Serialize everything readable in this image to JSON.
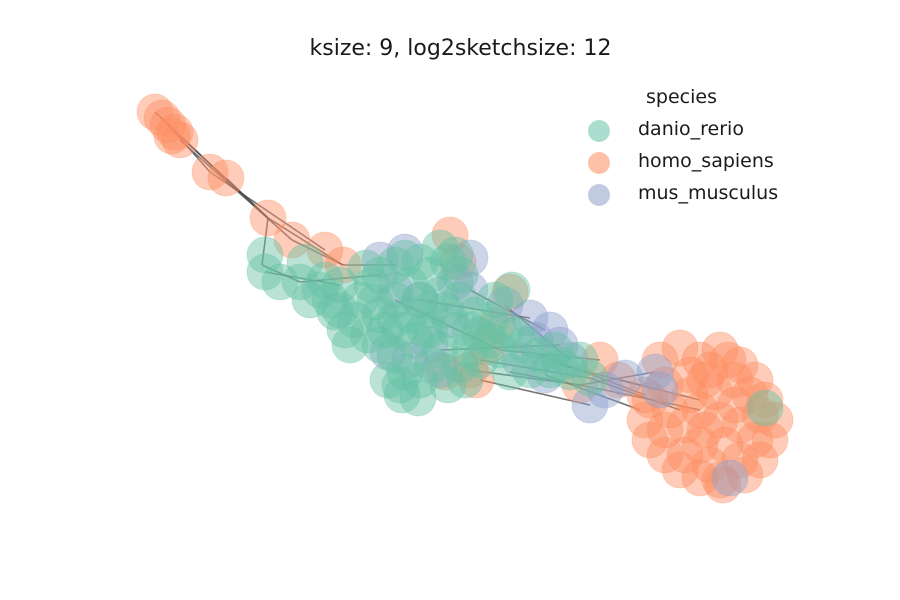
{
  "chart_data": {
    "type": "scatter",
    "subtype": "network-graph",
    "title": "ksize: 9, log2sketchsize: 12",
    "xlabel": "",
    "ylabel": "",
    "axes_visible": false,
    "grid": false,
    "legend": {
      "title": "species",
      "placement": "top-right",
      "entries": [
        {
          "name": "danio_rerio",
          "color": "#66c2a5"
        },
        {
          "name": "homo_sapiens",
          "color": "#fc8d62"
        },
        {
          "name": "mus_musculus",
          "color": "#8da0cb"
        }
      ]
    },
    "edge_color": "#444444",
    "node_opacity": 0.45,
    "series": [
      {
        "name": "homo_sapiens",
        "color": "#fc8d62",
        "points": [
          [
            155,
            112
          ],
          [
            162,
            118
          ],
          [
            168,
            125
          ],
          [
            175,
            132
          ],
          [
            180,
            140
          ],
          [
            172,
            136
          ],
          [
            210,
            172
          ],
          [
            226,
            178
          ],
          [
            268,
            218
          ],
          [
            292,
            240
          ],
          [
            325,
            250
          ],
          [
            343,
            265
          ],
          [
            450,
            235
          ],
          [
            458,
            262
          ],
          [
            510,
            292
          ],
          [
            497,
            325
          ],
          [
            487,
            347
          ],
          [
            470,
            370
          ],
          [
            476,
            380
          ],
          [
            445,
            372
          ],
          [
            580,
            385
          ],
          [
            600,
            360
          ],
          [
            618,
            380
          ],
          [
            645,
            395
          ],
          [
            660,
            360
          ],
          [
            680,
            348
          ],
          [
            700,
            360
          ],
          [
            720,
            350
          ],
          [
            740,
            365
          ],
          [
            755,
            380
          ],
          [
            765,
            400
          ],
          [
            775,
            420
          ],
          [
            770,
            440
          ],
          [
            760,
            460
          ],
          [
            745,
            475
          ],
          [
            720,
            480
          ],
          [
            700,
            478
          ],
          [
            680,
            470
          ],
          [
            665,
            455
          ],
          [
            650,
            440
          ],
          [
            645,
            420
          ],
          [
            650,
            400
          ],
          [
            665,
            385
          ],
          [
            690,
            375
          ],
          [
            710,
            370
          ],
          [
            735,
            380
          ],
          [
            750,
            395
          ],
          [
            760,
            415
          ],
          [
            755,
            440
          ],
          [
            740,
            460
          ],
          [
            710,
            465
          ],
          [
            685,
            455
          ],
          [
            665,
            430
          ],
          [
            670,
            410
          ],
          [
            690,
            395
          ],
          [
            715,
            392
          ],
          [
            735,
            405
          ],
          [
            740,
            425
          ],
          [
            725,
            445
          ],
          [
            700,
            445
          ],
          [
            685,
            425
          ],
          [
            700,
            410
          ],
          [
            720,
            420
          ],
          [
            705,
            430
          ],
          [
            723,
            485
          ],
          [
            705,
            380
          ],
          [
            728,
            360
          ]
        ]
      },
      {
        "name": "mus_musculus",
        "color": "#8da0cb",
        "points": [
          [
            380,
            260
          ],
          [
            405,
            252
          ],
          [
            470,
            258
          ],
          [
            395,
            290
          ],
          [
            420,
            300
          ],
          [
            470,
            290
          ],
          [
            505,
            305
          ],
          [
            530,
            318
          ],
          [
            550,
            330
          ],
          [
            560,
            345
          ],
          [
            570,
            360
          ],
          [
            590,
            405
          ],
          [
            605,
            390
          ],
          [
            625,
            378
          ],
          [
            655,
            372
          ],
          [
            660,
            390
          ],
          [
            440,
            370
          ],
          [
            410,
            360
          ],
          [
            388,
            352
          ],
          [
            520,
            360
          ],
          [
            545,
            375
          ],
          [
            535,
            340
          ],
          [
            450,
            320
          ],
          [
            430,
            345
          ],
          [
            730,
            478
          ],
          [
            455,
            282
          ]
        ]
      },
      {
        "name": "danio_rerio",
        "color": "#66c2a5",
        "points": [
          [
            265,
            255
          ],
          [
            265,
            272
          ],
          [
            280,
            282
          ],
          [
            300,
            282
          ],
          [
            305,
            262
          ],
          [
            320,
            290
          ],
          [
            330,
            300
          ],
          [
            340,
            310
          ],
          [
            345,
            330
          ],
          [
            355,
            320
          ],
          [
            360,
            300
          ],
          [
            372,
            285
          ],
          [
            380,
            275
          ],
          [
            395,
            265
          ],
          [
            405,
            258
          ],
          [
            420,
            262
          ],
          [
            440,
            248
          ],
          [
            455,
            255
          ],
          [
            430,
            275
          ],
          [
            410,
            285
          ],
          [
            395,
            300
          ],
          [
            380,
            315
          ],
          [
            368,
            335
          ],
          [
            380,
            345
          ],
          [
            395,
            355
          ],
          [
            405,
            372
          ],
          [
            400,
            385
          ],
          [
            420,
            380
          ],
          [
            432,
            365
          ],
          [
            440,
            350
          ],
          [
            425,
            330
          ],
          [
            410,
            315
          ],
          [
            420,
            300
          ],
          [
            440,
            295
          ],
          [
            460,
            300
          ],
          [
            475,
            315
          ],
          [
            480,
            335
          ],
          [
            470,
            350
          ],
          [
            460,
            365
          ],
          [
            480,
            360
          ],
          [
            500,
            350
          ],
          [
            515,
            335
          ],
          [
            512,
            290
          ],
          [
            495,
            300
          ],
          [
            490,
            320
          ],
          [
            525,
            345
          ],
          [
            540,
            355
          ],
          [
            555,
            350
          ],
          [
            560,
            365
          ],
          [
            570,
            372
          ],
          [
            580,
            360
          ],
          [
            590,
            378
          ],
          [
            550,
            370
          ],
          [
            530,
            370
          ],
          [
            510,
            372
          ],
          [
            465,
            380
          ],
          [
            448,
            385
          ],
          [
            388,
            380
          ],
          [
            402,
            395
          ],
          [
            418,
            398
          ],
          [
            455,
            330
          ],
          [
            445,
            310
          ],
          [
            430,
            310
          ],
          [
            415,
            340
          ],
          [
            385,
            330
          ],
          [
            350,
            345
          ],
          [
            335,
            312
          ],
          [
            375,
            302
          ],
          [
            400,
            330
          ],
          [
            460,
            275
          ],
          [
            340,
            285
          ],
          [
            310,
            300
          ],
          [
            325,
            280
          ],
          [
            366,
            268
          ],
          [
            448,
            262
          ],
          [
            490,
            340
          ],
          [
            505,
            330
          ],
          [
            470,
            330
          ],
          [
            430,
            330
          ],
          [
            395,
            320
          ],
          [
            765,
            408
          ]
        ]
      }
    ],
    "edges": [
      [
        [
          155,
          112
        ],
        [
          225,
          178
        ]
      ],
      [
        [
          162,
          118
        ],
        [
          210,
          172
        ]
      ],
      [
        [
          168,
          125
        ],
        [
          268,
          218
        ]
      ],
      [
        [
          180,
          140
        ],
        [
          292,
          240
        ]
      ],
      [
        [
          226,
          178
        ],
        [
          268,
          218
        ]
      ],
      [
        [
          210,
          172
        ],
        [
          325,
          250
        ]
      ],
      [
        [
          268,
          218
        ],
        [
          343,
          265
        ]
      ],
      [
        [
          268,
          218
        ],
        [
          262,
          265
        ]
      ],
      [
        [
          292,
          240
        ],
        [
          343,
          265
        ]
      ],
      [
        [
          262,
          265
        ],
        [
          300,
          282
        ]
      ],
      [
        [
          265,
          272
        ],
        [
          340,
          285
        ]
      ],
      [
        [
          300,
          282
        ],
        [
          380,
          275
        ]
      ],
      [
        [
          343,
          265
        ],
        [
          395,
          265
        ]
      ],
      [
        [
          420,
          300
        ],
        [
          530,
          318
        ]
      ],
      [
        [
          440,
          350
        ],
        [
          560,
          345
        ]
      ],
      [
        [
          480,
          360
        ],
        [
          590,
          378
        ]
      ],
      [
        [
          500,
          350
        ],
        [
          600,
          360
        ]
      ],
      [
        [
          470,
          370
        ],
        [
          580,
          385
        ]
      ],
      [
        [
          480,
          380
        ],
        [
          590,
          405
        ]
      ],
      [
        [
          510,
          372
        ],
        [
          605,
          390
        ]
      ],
      [
        [
          540,
          355
        ],
        [
          645,
          395
        ]
      ],
      [
        [
          560,
          365
        ],
        [
          660,
          390
        ]
      ],
      [
        [
          590,
          378
        ],
        [
          680,
          410
        ]
      ],
      [
        [
          580,
          385
        ],
        [
          655,
          372
        ]
      ],
      [
        [
          605,
          390
        ],
        [
          700,
          410
        ]
      ],
      [
        [
          620,
          380
        ],
        [
          700,
          400
        ]
      ],
      [
        [
          545,
          375
        ],
        [
          640,
          410
        ]
      ],
      [
        [
          470,
          290
        ],
        [
          545,
          330
        ]
      ],
      [
        [
          505,
          305
        ],
        [
          570,
          360
        ]
      ],
      [
        [
          395,
          300
        ],
        [
          500,
          350
        ]
      ]
    ]
  }
}
